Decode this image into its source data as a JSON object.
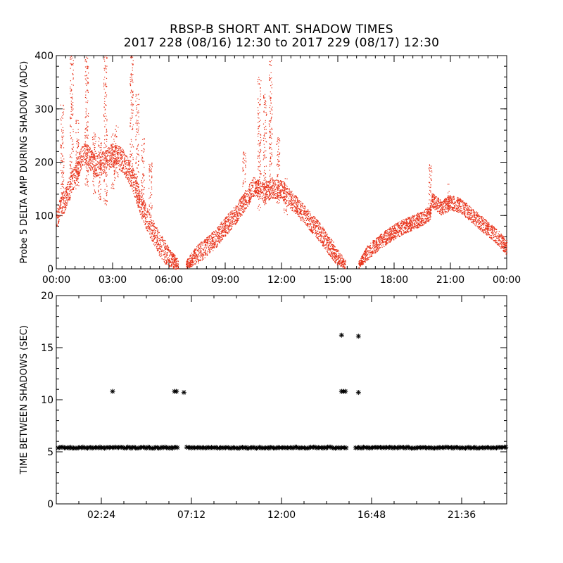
{
  "header": {
    "title_line1": "RBSP-B SHORT ANT. SHADOW TIMES",
    "title_line2": "2017 228 (08/16) 12:30 to 2017 229 (08/17) 12:30"
  },
  "colors": {
    "top_points": "#e8321a",
    "bottom_points": "#000000",
    "axis": "#000000"
  },
  "chart_data": [
    {
      "type": "scatter",
      "title": "",
      "ylabel": "Probe 5 DELTA AMP DURING SHADOW (ADC)",
      "xlabel": "",
      "xlim": [
        0,
        24
      ],
      "ylim": [
        0,
        400
      ],
      "x_ticks": [
        0,
        3,
        6,
        9,
        12,
        15,
        18,
        21,
        24
      ],
      "x_tick_labels": [
        "00:00",
        "03:00",
        "06:00",
        "09:00",
        "12:00",
        "15:00",
        "18:00",
        "21:00",
        "00:00"
      ],
      "y_ticks": [
        0,
        100,
        200,
        300,
        400
      ],
      "y_tick_labels": [
        "0",
        "100",
        "200",
        "300",
        "400"
      ],
      "grid": false,
      "marker": "dot",
      "band_segments": [
        {
          "x": [
            0.0,
            0.5,
            1.0,
            1.5,
            2.0,
            2.5,
            3.0,
            3.5,
            4.0,
            4.5,
            5.0,
            5.5,
            6.0,
            6.5
          ],
          "y": [
            100,
            135,
            180,
            220,
            195,
            200,
            215,
            205,
            175,
            120,
            80,
            45,
            22,
            8
          ],
          "spread": 22
        },
        {
          "x": [
            6.9,
            7.5,
            8.0,
            8.5,
            9.0,
            9.5,
            10.0,
            10.5,
            11.0,
            11.5,
            12.0,
            12.5,
            13.0,
            13.5,
            14.0,
            14.5,
            15.0,
            15.4
          ],
          "y": [
            8,
            28,
            42,
            58,
            80,
            100,
            125,
            155,
            145,
            150,
            150,
            130,
            110,
            90,
            70,
            45,
            22,
            8
          ],
          "spread": 18
        },
        {
          "x": [
            16.1,
            16.5,
            17.0,
            17.5,
            18.0,
            18.5,
            19.0,
            19.5,
            19.9,
            20.0,
            20.5,
            21.0,
            21.5,
            22.0,
            22.5,
            23.0,
            23.5,
            24.0
          ],
          "y": [
            8,
            28,
            45,
            58,
            70,
            80,
            88,
            95,
            105,
            130,
            115,
            125,
            120,
            105,
            90,
            75,
            60,
            40
          ],
          "spread": 14
        }
      ],
      "spike_columns": [
        {
          "x": 0.3,
          "y_range": [
            100,
            310
          ]
        },
        {
          "x": 0.8,
          "y_range": [
            180,
            400
          ]
        },
        {
          "x": 1.1,
          "y_range": [
            150,
            280
          ]
        },
        {
          "x": 1.6,
          "y_range": [
            150,
            400
          ]
        },
        {
          "x": 2.0,
          "y_range": [
            140,
            260
          ]
        },
        {
          "x": 2.3,
          "y_range": [
            130,
            250
          ]
        },
        {
          "x": 2.6,
          "y_range": [
            120,
            400
          ]
        },
        {
          "x": 3.0,
          "y_range": [
            150,
            260
          ]
        },
        {
          "x": 3.2,
          "y_range": [
            170,
            270
          ]
        },
        {
          "x": 4.0,
          "y_range": [
            150,
            400
          ]
        },
        {
          "x": 4.3,
          "y_range": [
            120,
            330
          ]
        },
        {
          "x": 4.6,
          "y_range": [
            110,
            250
          ]
        },
        {
          "x": 5.0,
          "y_range": [
            80,
            200
          ]
        },
        {
          "x": 10.0,
          "y_range": [
            120,
            220
          ]
        },
        {
          "x": 10.8,
          "y_range": [
            110,
            360
          ]
        },
        {
          "x": 11.1,
          "y_range": [
            120,
            330
          ]
        },
        {
          "x": 11.4,
          "y_range": [
            140,
            400
          ]
        },
        {
          "x": 11.8,
          "y_range": [
            120,
            250
          ]
        },
        {
          "x": 12.2,
          "y_range": [
            100,
            170
          ]
        },
        {
          "x": 19.9,
          "y_range": [
            110,
            200
          ]
        },
        {
          "x": 20.9,
          "y_range": [
            120,
            160
          ]
        }
      ]
    },
    {
      "type": "scatter",
      "title": "",
      "ylabel": "TIME BETWEEN SHADOWS (SEC)",
      "xlabel": "",
      "xlim": [
        0,
        24
      ],
      "ylim": [
        0,
        20
      ],
      "x_ticks": [
        2.4,
        7.2,
        12.0,
        16.8,
        21.6
      ],
      "x_tick_labels": [
        "02:24",
        "07:12",
        "12:00",
        "16:48",
        "21:36"
      ],
      "y_ticks": [
        0,
        5,
        10,
        15,
        20
      ],
      "y_tick_labels": [
        "0",
        "5",
        "10",
        "15",
        "20"
      ],
      "grid": false,
      "marker": "asterisk",
      "baseline": {
        "y": 5.4,
        "x_segments": [
          [
            0.1,
            6.5
          ],
          [
            6.95,
            15.45
          ],
          [
            15.95,
            24.0
          ]
        ]
      },
      "outliers": [
        {
          "x": 3.0,
          "y": 10.8
        },
        {
          "x": 6.3,
          "y": 10.8
        },
        {
          "x": 6.4,
          "y": 10.8
        },
        {
          "x": 6.8,
          "y": 10.7
        },
        {
          "x": 15.2,
          "y": 16.2
        },
        {
          "x": 15.2,
          "y": 10.8
        },
        {
          "x": 15.3,
          "y": 10.8
        },
        {
          "x": 15.4,
          "y": 10.8
        },
        {
          "x": 16.1,
          "y": 16.1
        },
        {
          "x": 16.1,
          "y": 10.7
        }
      ]
    }
  ]
}
